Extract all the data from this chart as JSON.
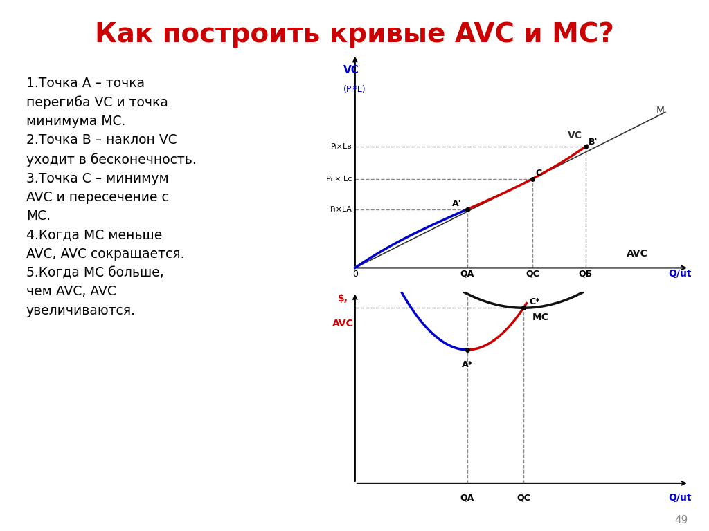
{
  "title": "Как построить кривые AVC и MC?",
  "title_color": "#cc0000",
  "title_fontsize": 28,
  "background_color": "#ffffff",
  "text_box_color": "#ffffcc",
  "text_box_lines": [
    "1.Точка A – точка",
    "перегиба VC и точка",
    "минимума МС.",
    "2.Точка B – наклон VC",
    "уходит в бесконечность.",
    "3.Точка C – минимум",
    "AVC и пересечение с",
    "МС.",
    "4.Когда МС меньше",
    "AVC, AVC сокращается.",
    "5.Когда МС больше,",
    "чем AVC, AVC",
    "увеличиваются."
  ],
  "page_number": "49"
}
